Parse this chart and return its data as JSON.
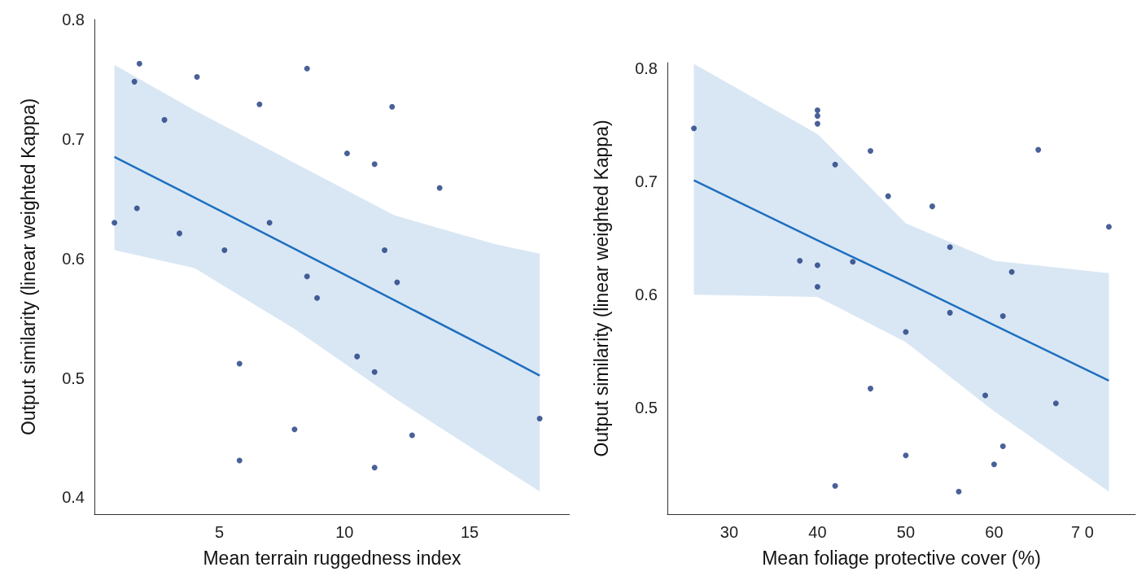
{
  "chart_data": [
    {
      "type": "scatter",
      "xlabel": "Mean terrain ruggedness index",
      "ylabel": "Output similarity (linear weighted Kappa)",
      "xlim": [
        0,
        19
      ],
      "xticks": [
        5,
        10,
        15
      ],
      "ylim": [
        0.386,
        0.8
      ],
      "yticks": [
        0.4,
        0.5,
        0.6,
        0.7,
        0.8
      ],
      "series": [
        {
          "color": "#1b3a7e",
          "marker": "circle",
          "x": [
            0.8,
            1.6,
            1.8,
            1.7,
            2.8,
            3.4,
            4.1,
            5.2,
            5.8,
            5.8,
            6.6,
            7.0,
            8.0,
            8.5,
            8.5,
            8.9,
            10.1,
            10.5,
            11.2,
            11.2,
            11.2,
            11.6,
            11.9,
            12.1,
            12.7,
            13.8,
            17.8
          ],
          "values": [
            0.63,
            0.748,
            0.763,
            0.642,
            0.716,
            0.621,
            0.752,
            0.607,
            0.512,
            0.431,
            0.729,
            0.63,
            0.457,
            0.759,
            0.585,
            0.567,
            0.688,
            0.518,
            0.679,
            0.505,
            0.425,
            0.607,
            0.727,
            0.58,
            0.452,
            0.659,
            0.466
          ]
        },
        {
          "type": "line",
          "marker": "none",
          "color": "#1f6fbf",
          "x": [
            0.8,
            4,
            8,
            12,
            16,
            17.8
          ],
          "values": [
            0.685,
            0.651,
            0.608,
            0.565,
            0.522,
            0.502
          ],
          "lower": [
            0.607,
            0.592,
            0.541,
            0.483,
            0.429,
            0.405
          ],
          "upper": [
            0.762,
            0.724,
            0.68,
            0.636,
            0.612,
            0.604
          ]
        }
      ]
    },
    {
      "type": "scatter",
      "xlabel": "Mean foliage protective cover (%)",
      "ylabel": "Output similarity (linear weighted Kappa)",
      "xlim": [
        23,
        76
      ],
      "xticks": [
        30,
        40,
        50,
        60,
        {
          "value": 70,
          "label": "7 0"
        }
      ],
      "ylim": [
        0.406,
        0.805
      ],
      "yticks": [
        0.5,
        0.6,
        0.7,
        0.8
      ],
      "series": [
        {
          "color": "#1b3a7e",
          "marker": "circle",
          "x": [
            26,
            40,
            40,
            40,
            38,
            40,
            40,
            42,
            44,
            42,
            46,
            46,
            48,
            50,
            50,
            53,
            55,
            55,
            56,
            59,
            60,
            61,
            61,
            62,
            65,
            67,
            73
          ],
          "values": [
            0.747,
            0.763,
            0.758,
            0.751,
            0.63,
            0.626,
            0.607,
            0.715,
            0.629,
            0.431,
            0.727,
            0.517,
            0.687,
            0.567,
            0.458,
            0.678,
            0.642,
            0.584,
            0.426,
            0.511,
            0.45,
            0.581,
            0.466,
            0.62,
            0.728,
            0.504,
            0.66
          ]
        },
        {
          "type": "line",
          "marker": "none",
          "color": "#1f6fbf",
          "x": [
            26,
            40,
            50,
            60,
            73
          ],
          "values": [
            0.701,
            0.648,
            0.611,
            0.573,
            0.524
          ],
          "lower": [
            0.6,
            0.598,
            0.558,
            0.497,
            0.426
          ],
          "upper": [
            0.804,
            0.742,
            0.663,
            0.63,
            0.619
          ]
        }
      ]
    }
  ]
}
